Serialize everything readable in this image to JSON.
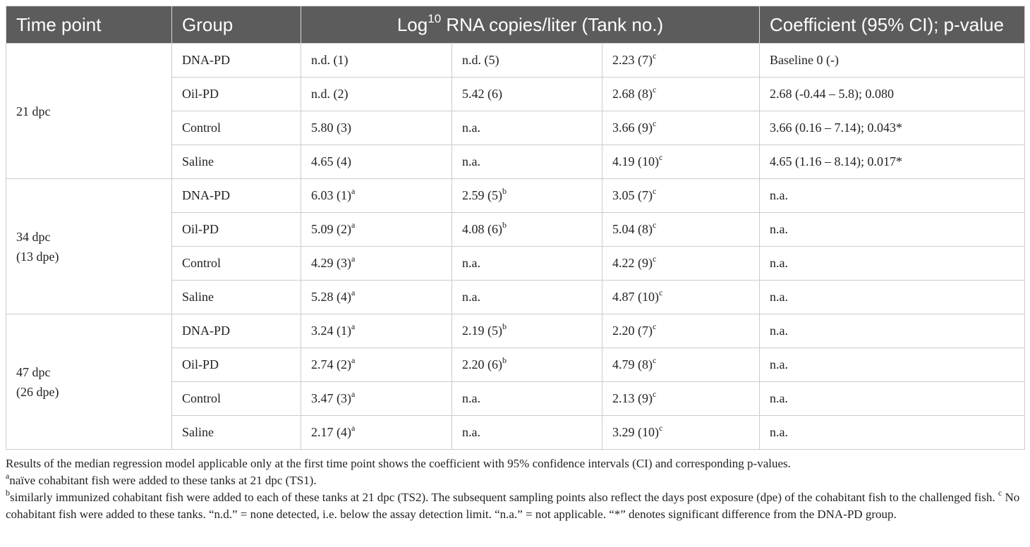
{
  "header": {
    "time": "Time point",
    "group": "Group",
    "log": {
      "pre": "Log",
      "sup": "10",
      "post": " RNA copies/liter (Tank no.)"
    },
    "coef": "Coefficient (95% CI); p-value"
  },
  "table": {
    "blocks": [
      {
        "time": [
          "21 dpc"
        ],
        "rows": [
          {
            "group": "DNA-PD",
            "cells": [
              "n.d. (1)",
              "n.d. (5)",
              {
                "text": "2.23 (7)",
                "sup": "c"
              },
              "Baseline 0 (-)"
            ]
          },
          {
            "group": "Oil-PD",
            "cells": [
              "n.d. (2)",
              "5.42 (6)",
              {
                "text": "2.68 (8)",
                "sup": "c"
              },
              "2.68 (-0.44 – 5.8); 0.080"
            ]
          },
          {
            "group": "Control",
            "cells": [
              "5.80 (3)",
              "n.a.",
              {
                "text": "3.66 (9)",
                "sup": "c"
              },
              "3.66 (0.16 – 7.14); 0.043*"
            ]
          },
          {
            "group": "Saline",
            "cells": [
              "4.65 (4)",
              "n.a.",
              {
                "text": "4.19 (10)",
                "sup": "c"
              },
              "4.65 (1.16 – 8.14); 0.017*"
            ]
          }
        ]
      },
      {
        "time": [
          "34 dpc",
          "(13 dpe)"
        ],
        "rows": [
          {
            "group": "DNA-PD",
            "cells": [
              {
                "text": "6.03 (1)",
                "sup": "a"
              },
              {
                "text": "2.59 (5)",
                "sup": "b"
              },
              {
                "text": "3.05 (7)",
                "sup": "c"
              },
              "n.a."
            ]
          },
          {
            "group": "Oil-PD",
            "cells": [
              {
                "text": "5.09 (2)",
                "sup": "a"
              },
              {
                "text": "4.08 (6)",
                "sup": "b"
              },
              {
                "text": "5.04 (8)",
                "sup": "c"
              },
              "n.a."
            ]
          },
          {
            "group": "Control",
            "cells": [
              {
                "text": "4.29 (3)",
                "sup": "a"
              },
              "n.a.",
              {
                "text": "4.22 (9)",
                "sup": "c"
              },
              "n.a."
            ]
          },
          {
            "group": "Saline",
            "cells": [
              {
                "text": "5.28 (4)",
                "sup": "a"
              },
              "n.a.",
              {
                "text": "4.87 (10)",
                "sup": "c"
              },
              "n.a."
            ]
          }
        ]
      },
      {
        "time": [
          "47 dpc",
          "(26 dpe)"
        ],
        "rows": [
          {
            "group": "DNA-PD",
            "cells": [
              {
                "text": "3.24 (1)",
                "sup": "a"
              },
              {
                "text": "2.19 (5)",
                "sup": "b"
              },
              {
                "text": "2.20 (7)",
                "sup": "c"
              },
              "n.a."
            ]
          },
          {
            "group": "Oil-PD",
            "cells": [
              {
                "text": "2.74 (2)",
                "sup": "a"
              },
              {
                "text": "2.20 (6)",
                "sup": "b"
              },
              {
                "text": "4.79 (8)",
                "sup": "c"
              },
              "n.a."
            ]
          },
          {
            "group": "Control",
            "cells": [
              {
                "text": "3.47 (3)",
                "sup": "a"
              },
              "n.a.",
              {
                "text": "2.13 (9)",
                "sup": "c"
              },
              "n.a."
            ]
          },
          {
            "group": "Saline",
            "cells": [
              {
                "text": "2.17 (4)",
                "sup": "a"
              },
              "n.a.",
              {
                "text": "3.29 (10)",
                "sup": "c"
              },
              "n.a."
            ]
          }
        ]
      }
    ]
  },
  "notes": {
    "summary": "Results of the median regression model applicable only at the first time point shows the coefficient with 95% confidence intervals (CI) and corresponding p-values.",
    "footnotes": [
      {
        "sup": "a",
        "text": "naïve cohabitant fish were added to these tanks at 21 dpc (TS1)."
      },
      {
        "sup": "b",
        "text": "similarly immunized cohabitant fish were added to each of these tanks at 21 dpc (TS2). The subsequent sampling points also reflect the days post exposure (dpe) of the cohabitant fish to the challenged fish."
      },
      {
        "sup": "c",
        "text": "No cohabitant fish were added to these tanks. “n.d.” = none detected, i.e. below the assay detection limit. “n.a.” = not applicable. “*” denotes significant difference from the DNA-PD group."
      }
    ]
  }
}
